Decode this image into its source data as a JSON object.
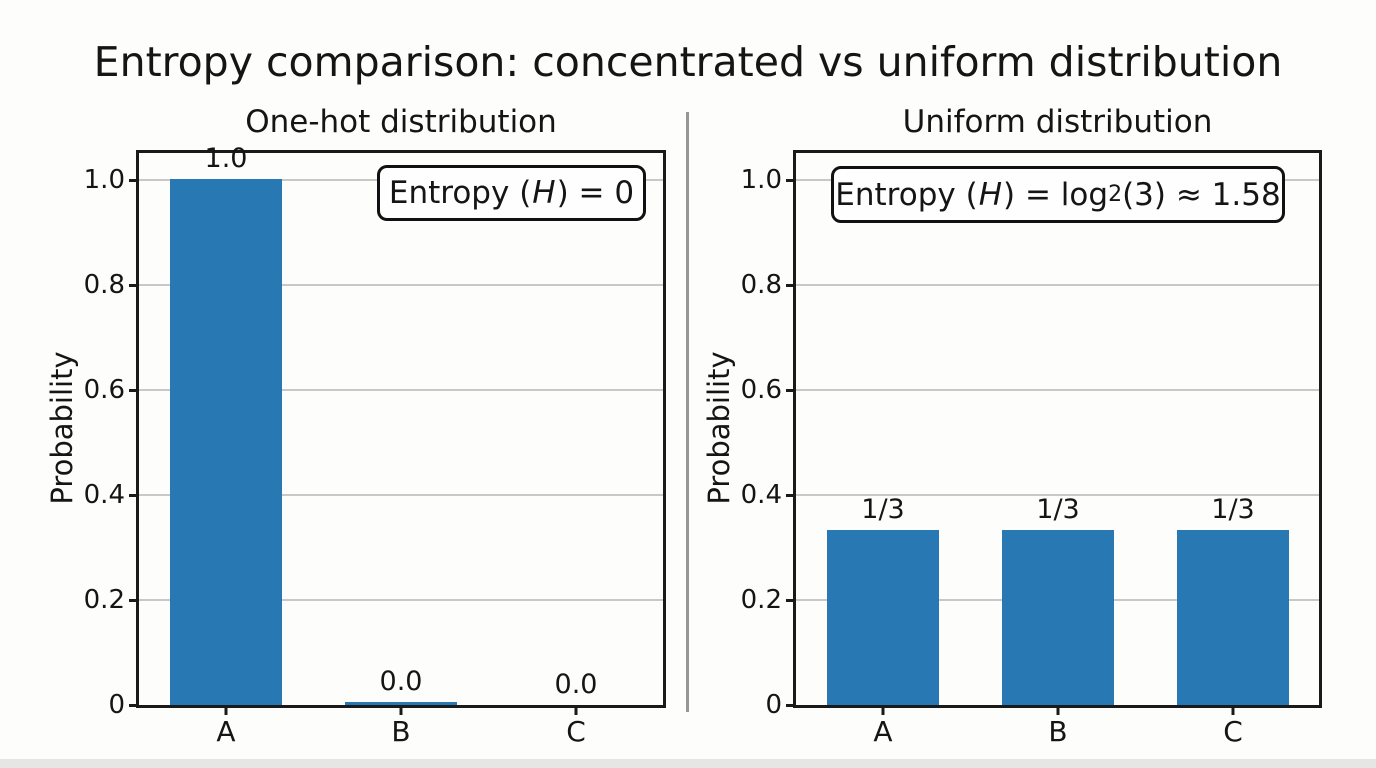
{
  "suptitle": "Entropy comparison: concentrated vs uniform distribution",
  "chart_data": [
    {
      "type": "bar",
      "title": "One-hot distribution",
      "categories": [
        "A",
        "B",
        "C"
      ],
      "values": [
        1.0,
        0.005,
        0.0
      ],
      "bar_labels": [
        "1.0",
        "0.0",
        "0.0"
      ],
      "ylabel": "Probability",
      "ylim": [
        0,
        1.05
      ],
      "yticks": [
        0,
        0.2,
        0.4,
        0.6,
        0.8,
        1.0
      ],
      "ytick_labels": [
        "0",
        "0.2",
        "0.4",
        "0.6",
        "0.8",
        "1.0"
      ],
      "grid": true,
      "legend": "none",
      "bar_color": "#2878b4",
      "annotation": {
        "prefix": "Entropy (",
        "var": "H",
        "suffix": ") = 0"
      }
    },
    {
      "type": "bar",
      "title": "Uniform distribution",
      "categories": [
        "A",
        "B",
        "C"
      ],
      "values": [
        0.3333,
        0.3333,
        0.3333
      ],
      "bar_labels": [
        "1/3",
        "1/3",
        "1/3"
      ],
      "ylabel": "Probability",
      "ylim": [
        0,
        1.05
      ],
      "yticks": [
        0,
        0.2,
        0.4,
        0.6,
        0.8,
        1.0
      ],
      "ytick_labels": [
        "0",
        "0.2",
        "0.4",
        "0.6",
        "0.8",
        "1.0"
      ],
      "grid": true,
      "legend": "none",
      "bar_color": "#2878b4",
      "annotation": {
        "prefix": "Entropy (",
        "var": "H",
        "mid": ") = log",
        "sub": "2",
        "suffix": "(3) ≈ 1.58"
      }
    }
  ]
}
